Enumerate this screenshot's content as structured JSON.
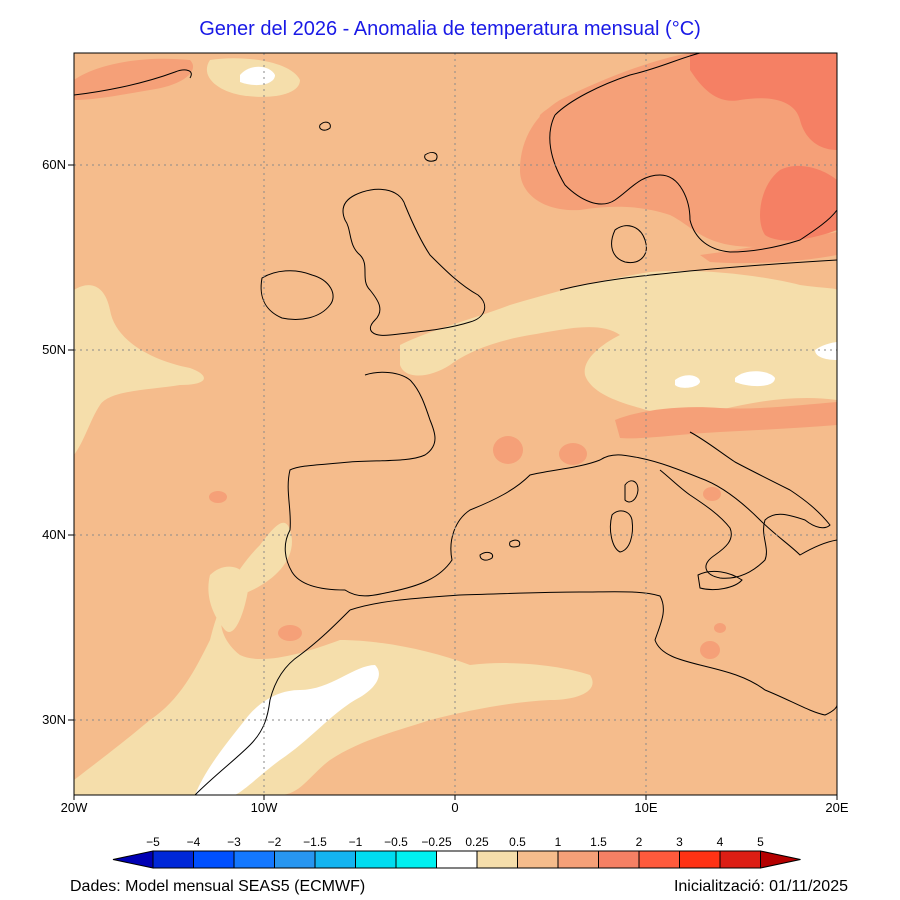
{
  "title": "Gener del 2026 - Anomalia de temperatura mensual (°C)",
  "map": {
    "lon_range": [
      -20,
      20
    ],
    "lat_range": [
      26,
      66
    ],
    "lon_ticks": [
      {
        "value": -20,
        "label": "20W"
      },
      {
        "value": -10,
        "label": "10W"
      },
      {
        "value": 0,
        "label": "0"
      },
      {
        "value": 10,
        "label": "10E"
      },
      {
        "value": 20,
        "label": "20E"
      }
    ],
    "lat_ticks": [
      {
        "value": 30,
        "label": "30N"
      },
      {
        "value": 40,
        "label": "40N"
      },
      {
        "value": 50,
        "label": "50N"
      },
      {
        "value": 60,
        "label": "60N"
      }
    ],
    "gridlines": "dotted"
  },
  "colorbar": {
    "labels": [
      "−5",
      "−4",
      "−3",
      "−2",
      "−1.5",
      "−1",
      "−0.5",
      "−0.25",
      "0.25",
      "0.5",
      "1",
      "1.5",
      "2",
      "3",
      "4",
      "5"
    ],
    "colors": [
      "#0000b4",
      "#0028d8",
      "#0050ff",
      "#1478ff",
      "#2896f0",
      "#14b4f0",
      "#00dcf0",
      "#00f0f0",
      "#ffffff",
      "#f5deab",
      "#f5bc8c",
      "#f5a078",
      "#f58064",
      "#ff5a3c",
      "#ff3214",
      "#dc1e14",
      "#b40000"
    ]
  },
  "anomaly_colors": {
    "neutral": "#ffffff",
    "c0_25_0_5": "#f5deab",
    "c0_5_1": "#f5bc8c",
    "c1_1_5": "#f5a078",
    "c1_5_2": "#f58064"
  },
  "footer": {
    "source": "Dades: Model mensual SEAS5 (ECMWF)",
    "init": "Inicialització: 01/11/2025"
  }
}
